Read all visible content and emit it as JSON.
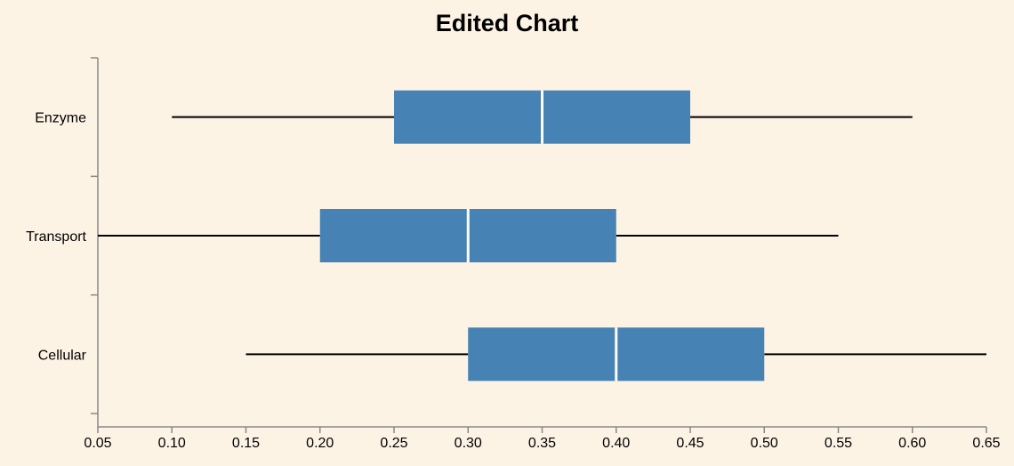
{
  "chart_data": {
    "type": "boxplot",
    "orientation": "horizontal",
    "title": "Edited Chart",
    "xlabel": "",
    "ylabel": "",
    "xlim": [
      0.05,
      0.65
    ],
    "x_ticks": [
      "0.05",
      "0.10",
      "0.15",
      "0.20",
      "0.25",
      "0.30",
      "0.35",
      "0.40",
      "0.45",
      "0.50",
      "0.55",
      "0.60",
      "0.65"
    ],
    "categories": [
      "Enzyme",
      "Transport",
      "Cellular"
    ],
    "boxes": [
      {
        "category": "Enzyme",
        "min": 0.1,
        "q1": 0.25,
        "median": 0.35,
        "q3": 0.45,
        "max": 0.6
      },
      {
        "category": "Transport",
        "min": 0.05,
        "q1": 0.2,
        "median": 0.3,
        "q3": 0.4,
        "max": 0.55
      },
      {
        "category": "Cellular",
        "min": 0.15,
        "q1": 0.3,
        "median": 0.4,
        "q3": 0.5,
        "max": 0.65
      }
    ],
    "grid": false,
    "colors": {
      "box": "#4682b4",
      "median": "#ffffff",
      "whisker": "#000000",
      "axis": "#888888",
      "background": "#fdf3e5"
    }
  }
}
